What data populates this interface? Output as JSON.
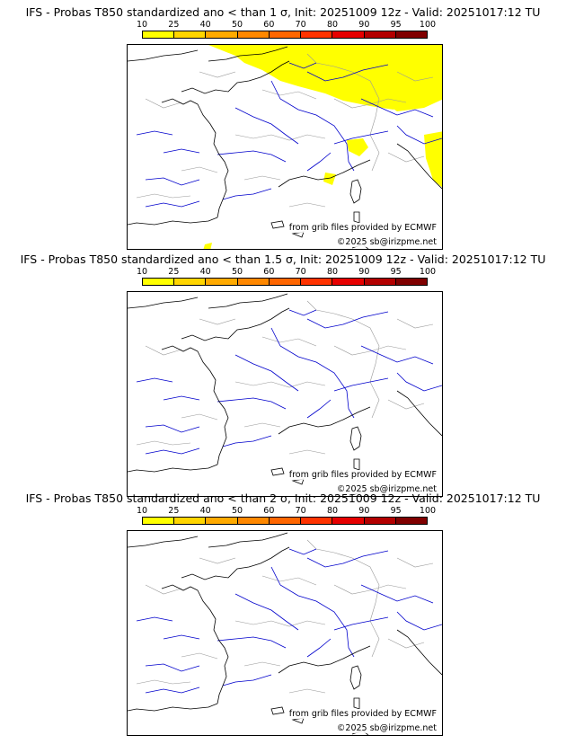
{
  "panels": [
    {
      "title": "IFS - Probas T850  standardized ano < than 1 σ, Init: 20251009 12z - Valid: 20251017:12 TU",
      "source_note": "from grib files provided by ECMWF",
      "copyright": "©2025 sb@irizpme.net",
      "has_probability_area": true,
      "probability_area_color": "#ffff00"
    },
    {
      "title": "IFS - Probas T850  standardized ano < than 1.5 σ, Init: 20251009 12z - Valid: 20251017:12 TU",
      "source_note": "from grib files provided by ECMWF",
      "copyright": "©2025 sb@irizpme.net",
      "has_probability_area": false
    },
    {
      "title": "IFS - Probas T850  standardized ano < than 2 σ, Init: 20251009 12z - Valid: 20251017:12 TU",
      "source_note": "from grib files provided by ECMWF",
      "copyright": "©2025 sb@irizpme.net",
      "has_probability_area": false
    }
  ],
  "colorbar": {
    "ticks": [
      "10",
      "25",
      "40",
      "50",
      "60",
      "70",
      "80",
      "90",
      "95",
      "100"
    ],
    "colors": [
      "#ffff00",
      "#ffd500",
      "#ffaa00",
      "#ff8800",
      "#ff6600",
      "#ff3300",
      "#e60000",
      "#b30000",
      "#800000"
    ]
  },
  "map_colors": {
    "coast": "#000000",
    "rivers": "#0000cc",
    "borders": "#999999"
  }
}
